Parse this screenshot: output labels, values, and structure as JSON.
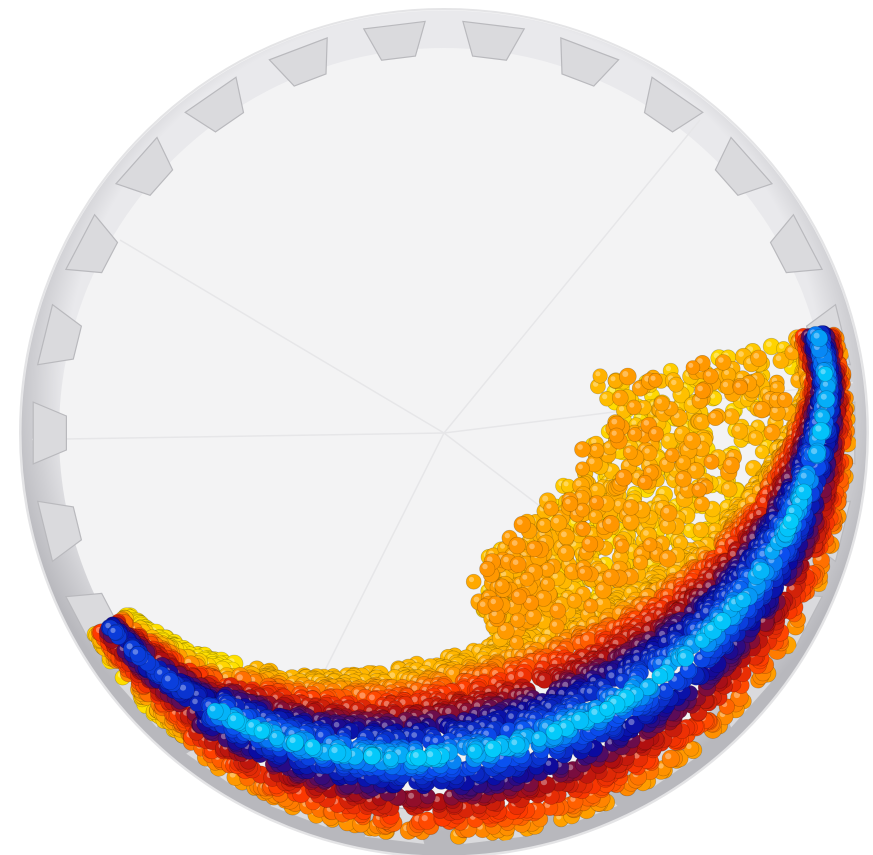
{
  "scene": {
    "subject": "rotating-drum-granular-flow",
    "background_color": "#ffffff",
    "drum_colors": {
      "rim_outer": "#cfcfd2",
      "rim_inner": "#e3e3e6",
      "interior": "#f1f1f2",
      "lifter_fill": "#dadadd",
      "lifter_stroke": "#b9b9bd"
    },
    "particle_colormap": [
      "#00ffff",
      "#0a4ff0",
      "#0a0aa0",
      "#b00f10",
      "#ff3a00",
      "#ff9a00",
      "#ffe000"
    ]
  }
}
